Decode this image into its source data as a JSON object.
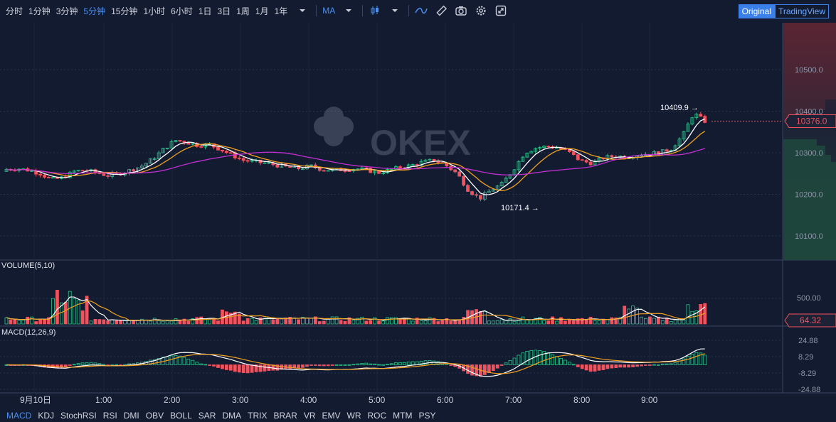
{
  "toolbar": {
    "intervals": [
      "分时",
      "1分钟",
      "3分钟",
      "5分钟",
      "15分钟",
      "1小时",
      "6小时",
      "1日",
      "3日",
      "1周",
      "1月",
      "1年"
    ],
    "active_interval": "5分钟",
    "more_icon": "caret-down-icon",
    "indicator": "MA",
    "icons": [
      "candle-type-icon",
      "caret-down-icon",
      "line-tool-icon",
      "ruler-icon",
      "camera-icon",
      "gear-icon",
      "fullscreen-icon"
    ]
  },
  "view_switch": {
    "original": "Original",
    "tradingview": "TradingView",
    "active": "Original"
  },
  "watermark": "OKEX",
  "price_axis": {
    "ticks": [
      "10500.0",
      "10400.0",
      "10300.0",
      "10200.0",
      "10100.0"
    ],
    "current_price": "10376.0",
    "max_label": "10409.9",
    "min_label": "10171.4"
  },
  "volume_panel": {
    "label": "VOLUME(5,10)",
    "tick": "500.00",
    "current": "64.32"
  },
  "macd_panel": {
    "label": "MACD(12,26,9)",
    "ticks": [
      "24.88",
      "8.29",
      "-8.29",
      "-24.88"
    ]
  },
  "time_axis": [
    "9月10日",
    "1:00",
    "2:00",
    "3:00",
    "4:00",
    "5:00",
    "6:00",
    "7:00",
    "8:00",
    "9:00"
  ],
  "bottom_tabs": [
    "MACD",
    "KDJ",
    "StochRSI",
    "RSI",
    "DMI",
    "OBV",
    "BOLL",
    "SAR",
    "DMA",
    "TRIX",
    "BRAR",
    "VR",
    "EMV",
    "WR",
    "ROC",
    "MTM",
    "PSY"
  ],
  "active_tab": "MACD",
  "colors": {
    "up": "#2bc48a",
    "down": "#f0525e",
    "ma5": "#ffffff",
    "ma10": "#f0a020",
    "ma30": "#c030d0",
    "accent": "#4a90f0"
  }
}
